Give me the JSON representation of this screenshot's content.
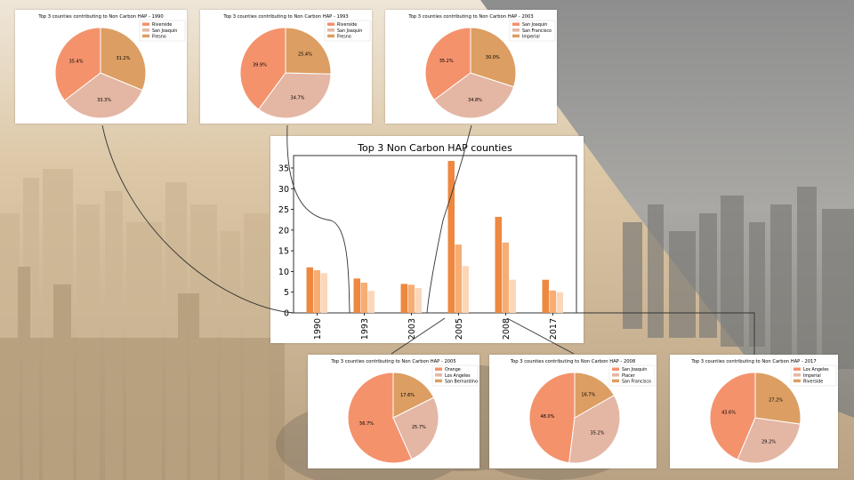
{
  "colors": {
    "slice_1": "#f4926c",
    "slice_2": "#e4b6a4",
    "slice_3": "#dc9e62",
    "bar_1": "#ee8840",
    "bar_2": "#f7ad74",
    "bar_3": "#fbd7b8"
  },
  "chart_data": [
    {
      "type": "bar",
      "title": "Top 3 Non Carbon HAP counties",
      "categories": [
        "1990",
        "1993",
        "2003",
        "2005",
        "2008",
        "2017"
      ],
      "series": [
        {
          "values": [
            11.0,
            8.3,
            7.0,
            36.7,
            23.2,
            8.0
          ]
        },
        {
          "values": [
            10.3,
            7.3,
            6.8,
            16.5,
            17.0,
            5.4
          ]
        },
        {
          "values": [
            9.6,
            5.3,
            6.0,
            11.3,
            8.0,
            5.0
          ]
        }
      ],
      "ylim": [
        0,
        38
      ],
      "yticks": [
        "0",
        "5",
        "10",
        "15",
        "20",
        "25",
        "30",
        "35"
      ],
      "grid": false
    },
    {
      "type": "pie",
      "title": "Top 3 counties contributing to Non Carbon HAP - 1990",
      "labels": [
        "Riverside",
        "San Joaquin",
        "Fresno"
      ],
      "values": [
        35.4,
        33.3,
        31.2
      ],
      "value_labels": [
        "35.4%",
        "33.3%",
        "31.2%"
      ],
      "legend": "top-right"
    },
    {
      "type": "pie",
      "title": "Top 3 counties contributing to Non Carbon HAP - 1993",
      "labels": [
        "Riverside",
        "San Joaquin",
        "Fresno"
      ],
      "values": [
        39.9,
        34.7,
        25.4
      ],
      "value_labels": [
        "39.9%",
        "34.7%",
        "25.4%"
      ],
      "legend": "top-right"
    },
    {
      "type": "pie",
      "title": "Top 3 counties contributing to Non Carbon HAP - 2003",
      "labels": [
        "San Joaquin",
        "San Francisco",
        "Imperial"
      ],
      "values": [
        35.2,
        34.8,
        30.0
      ],
      "value_labels": [
        "35.2%",
        "34.8%",
        "30.0%"
      ],
      "legend": "top-right"
    },
    {
      "type": "pie",
      "title": "Top 3 counties contributing to Non Carbon HAP - 2005",
      "labels": [
        "Orange",
        "Los Angeles",
        "San Bernardino"
      ],
      "values": [
        56.7,
        25.7,
        17.6
      ],
      "value_labels": [
        "56.7%",
        "25.7%",
        "17.6%"
      ],
      "legend": "top-right"
    },
    {
      "type": "pie",
      "title": "Top 3 counties contributing to Non Carbon HAP - 2008",
      "labels": [
        "San Joaquin",
        "Placer",
        "San Francisco"
      ],
      "values": [
        48.0,
        35.2,
        16.7
      ],
      "value_labels": [
        "48.0%",
        "35.2%",
        "16.7%"
      ],
      "legend": "top-right"
    },
    {
      "type": "pie",
      "title": "Top 3 counties contributing to Non Carbon HAP - 2017",
      "labels": [
        "Los Angeles",
        "Imperial",
        "Riverside"
      ],
      "values": [
        43.6,
        29.2,
        27.2
      ],
      "value_labels": [
        "43.6%",
        "29.2%",
        "27.2%"
      ],
      "legend": "top-right"
    }
  ]
}
